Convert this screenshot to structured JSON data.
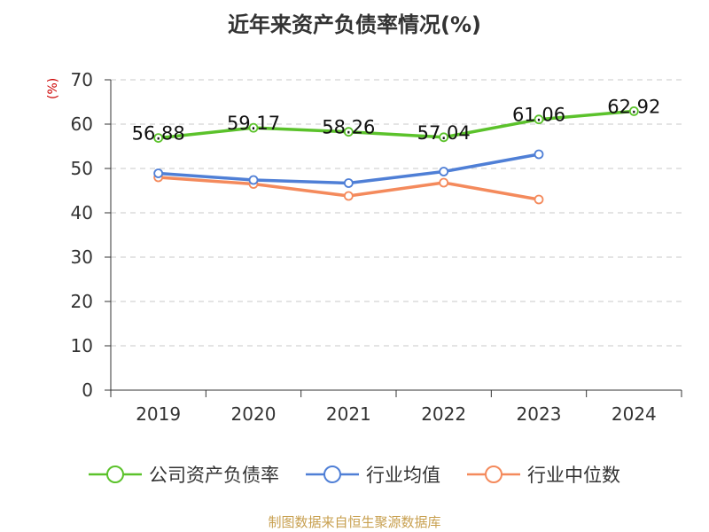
{
  "chart_data": {
    "type": "line",
    "title": "近年来资产负债率情况(%)",
    "ylabel": "(%)",
    "categories": [
      "2019",
      "2020",
      "2021",
      "2022",
      "2023",
      "2024"
    ],
    "ylim": [
      0,
      70
    ],
    "yticks": [
      0,
      10,
      20,
      30,
      40,
      50,
      60,
      70
    ],
    "grid": true,
    "legend_position": "bottom",
    "series": [
      {
        "name": "公司资产负债率",
        "color": "#5bc22b",
        "values": [
          56.88,
          59.17,
          58.26,
          57.04,
          61.06,
          62.92
        ],
        "labels": [
          "56.88",
          "59.17",
          "58.26",
          "57.04",
          "61.06",
          "62.92"
        ]
      },
      {
        "name": "行业均值",
        "color": "#4f7fd6",
        "values": [
          48.9,
          47.4,
          46.7,
          49.3,
          53.2,
          null
        ]
      },
      {
        "name": "行业中位数",
        "color": "#f48a5c",
        "values": [
          48.0,
          46.5,
          43.8,
          46.8,
          43.0,
          null
        ]
      }
    ]
  },
  "source": "制图数据来自恒生聚源数据库"
}
